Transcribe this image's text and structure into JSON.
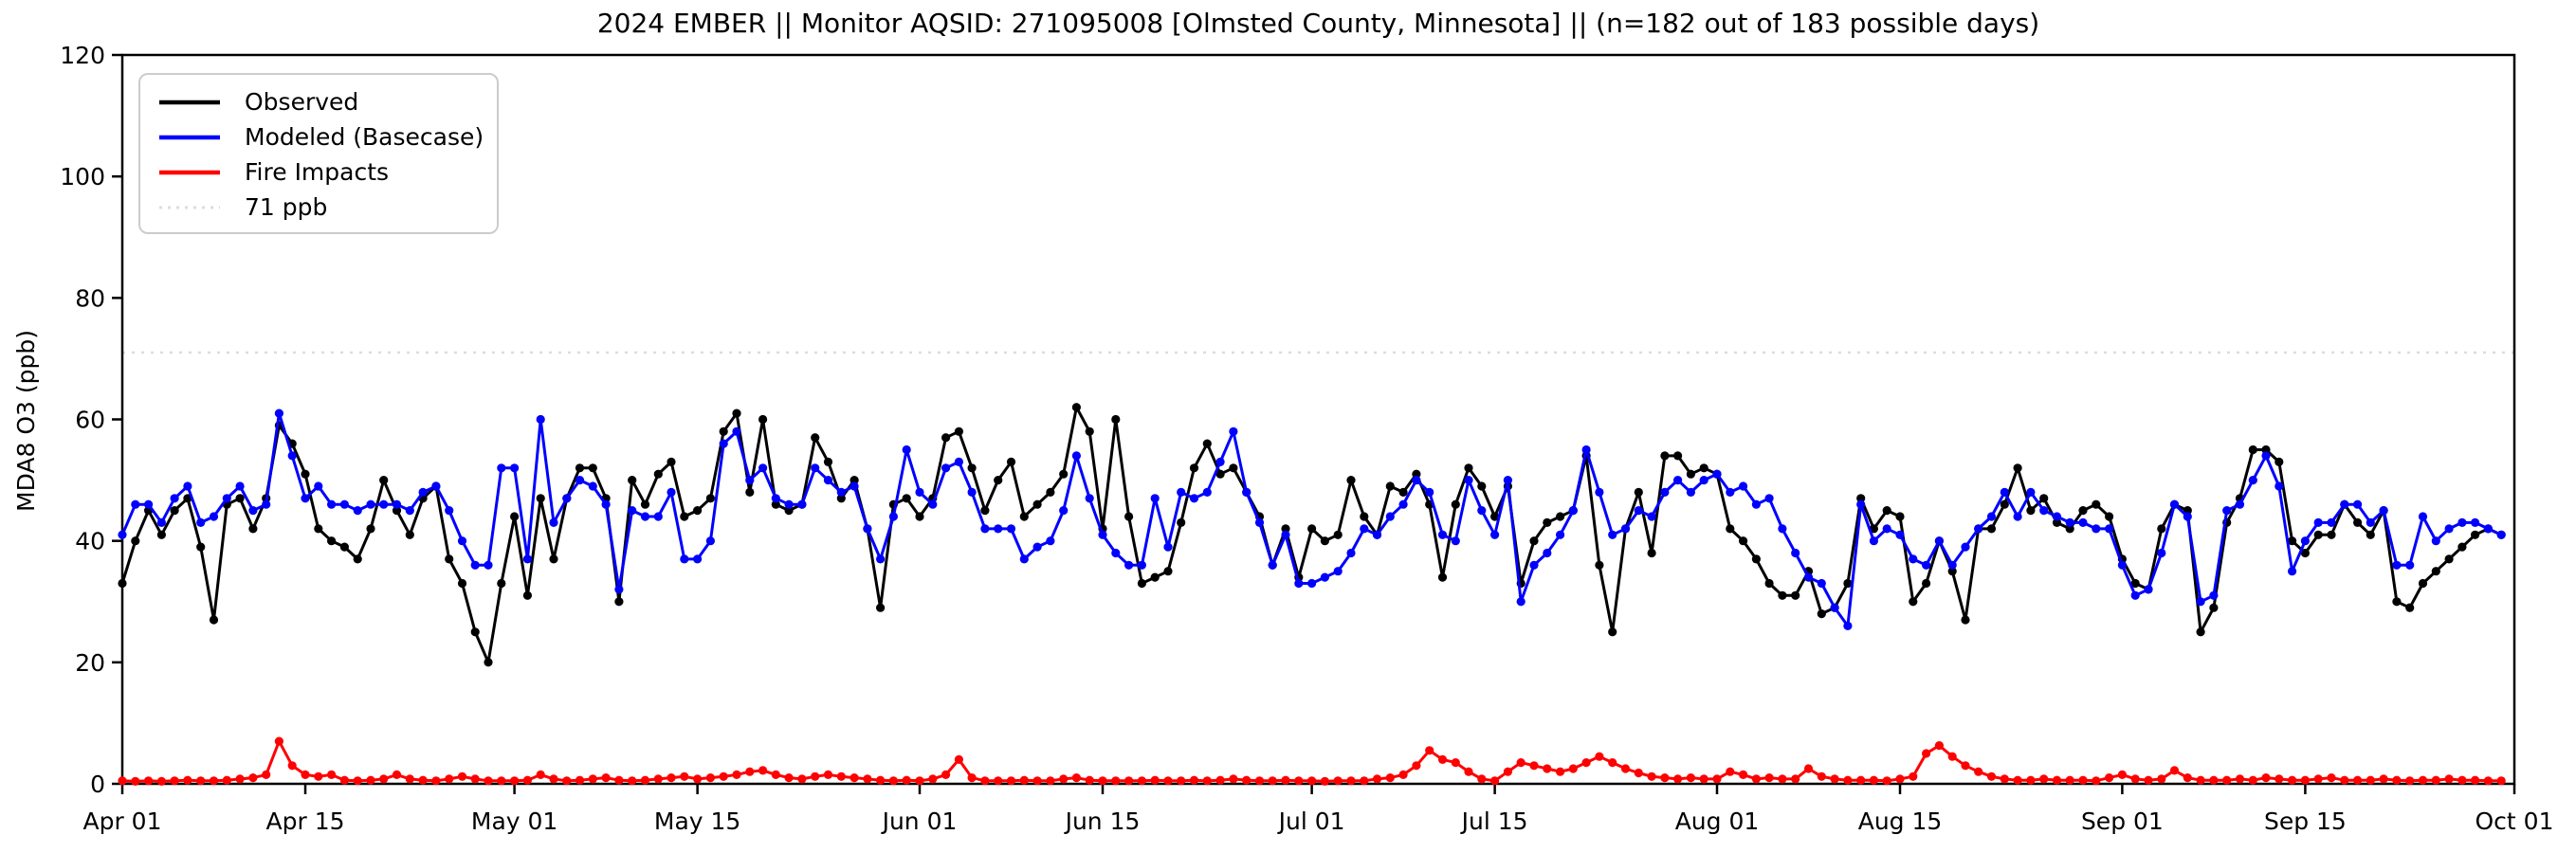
{
  "figure": {
    "title": "2024 EMBER || Monitor AQSID: 271095008 [Olmsted County, Minnesota] || (n=182 out of 183 possible days)",
    "background": "#ffffff"
  },
  "axes": {
    "ylabel": "MDA8 O3 (ppb)",
    "ylim": [
      0,
      120
    ],
    "yticks": [
      0,
      20,
      40,
      60,
      80,
      100,
      120
    ],
    "xlim_days": [
      0,
      183
    ],
    "xticks": [
      {
        "day": 0,
        "label": "Apr 01"
      },
      {
        "day": 14,
        "label": "Apr 15"
      },
      {
        "day": 30,
        "label": "May 01"
      },
      {
        "day": 44,
        "label": "May 15"
      },
      {
        "day": 61,
        "label": "Jun 01"
      },
      {
        "day": 75,
        "label": "Jun 15"
      },
      {
        "day": 91,
        "label": "Jul 01"
      },
      {
        "day": 105,
        "label": "Jul 15"
      },
      {
        "day": 122,
        "label": "Aug 01"
      },
      {
        "day": 136,
        "label": "Aug 15"
      },
      {
        "day": 153,
        "label": "Sep 01"
      },
      {
        "day": 167,
        "label": "Sep 15"
      },
      {
        "day": 183,
        "label": "Oct 01"
      }
    ]
  },
  "legend": {
    "entries": [
      {
        "label": "Observed",
        "color": "#000000",
        "style": "solid"
      },
      {
        "label": "Modeled (Basecase)",
        "color": "#0000ff",
        "style": "solid"
      },
      {
        "label": "Fire Impacts",
        "color": "#ff0000",
        "style": "solid"
      },
      {
        "label": "71 ppb",
        "color": "#dcdcdc",
        "style": "dotted"
      }
    ]
  },
  "chart_data": {
    "type": "line",
    "title": "2024 EMBER || Monitor AQSID: 271095008 [Olmsted County, Minnesota] || (n=182 out of 183 possible days)",
    "xlabel": "",
    "ylabel": "MDA8 O3 (ppb)",
    "ylim": [
      0,
      120
    ],
    "x_unit": "daily, day index 0 = Apr 01 2024, last point = Sep 30 2024",
    "n_days": 183,
    "grid": false,
    "legend_position": "upper-left",
    "threshold": {
      "value": 71,
      "label": "71 ppb",
      "color": "#dcdcdc",
      "style": "dotted"
    },
    "series": [
      {
        "name": "Observed",
        "color": "#000000",
        "marker": "circle",
        "values": [
          33,
          40,
          45,
          41,
          45,
          47,
          39,
          27,
          46,
          47,
          42,
          47,
          59,
          56,
          51,
          42,
          40,
          39,
          37,
          42,
          50,
          45,
          41,
          47,
          49,
          37,
          33,
          25,
          20,
          33,
          44,
          31,
          47,
          37,
          47,
          52,
          52,
          47,
          30,
          50,
          46,
          51,
          53,
          44,
          45,
          47,
          58,
          61,
          48,
          60,
          46,
          45,
          46,
          57,
          53,
          47,
          50,
          42,
          29,
          46,
          47,
          44,
          47,
          57,
          58,
          52,
          45,
          50,
          53,
          44,
          46,
          48,
          51,
          62,
          58,
          42,
          60,
          44,
          33,
          34,
          35,
          43,
          52,
          56,
          51,
          52,
          48,
          44,
          36,
          42,
          34,
          42,
          40,
          41,
          50,
          44,
          41,
          49,
          48,
          51,
          46,
          34,
          46,
          52,
          49,
          44,
          49,
          33,
          40,
          43,
          44,
          45,
          54,
          36,
          25,
          42,
          48,
          38,
          54,
          54,
          51,
          52,
          51,
          42,
          40,
          37,
          33,
          31,
          31,
          35,
          28,
          29,
          33,
          47,
          42,
          45,
          44,
          30,
          33,
          40,
          35,
          27,
          42,
          42,
          46,
          52,
          45,
          47,
          43,
          42,
          45,
          46,
          44,
          37,
          33,
          32,
          42,
          46,
          45,
          25,
          29,
          43,
          47,
          55,
          55,
          53,
          40,
          38,
          41,
          41,
          46,
          43,
          41,
          45,
          30,
          29,
          33,
          35,
          37,
          39,
          41,
          42,
          41
        ]
      },
      {
        "name": "Modeled (Basecase)",
        "color": "#0000ff",
        "marker": "circle",
        "values": [
          41,
          46,
          46,
          43,
          47,
          49,
          43,
          44,
          47,
          49,
          45,
          46,
          61,
          54,
          47,
          49,
          46,
          46,
          45,
          46,
          46,
          46,
          45,
          48,
          49,
          45,
          40,
          36,
          36,
          52,
          52,
          37,
          60,
          43,
          47,
          50,
          49,
          46,
          32,
          45,
          44,
          44,
          48,
          37,
          37,
          40,
          56,
          58,
          50,
          52,
          47,
          46,
          46,
          52,
          50,
          48,
          49,
          42,
          37,
          44,
          55,
          48,
          46,
          52,
          53,
          48,
          42,
          42,
          42,
          37,
          39,
          40,
          45,
          54,
          47,
          41,
          38,
          36,
          36,
          47,
          39,
          48,
          47,
          48,
          53,
          58,
          48,
          43,
          36,
          41,
          33,
          33,
          34,
          35,
          38,
          42,
          41,
          44,
          46,
          50,
          48,
          41,
          40,
          50,
          45,
          41,
          50,
          30,
          36,
          38,
          41,
          45,
          55,
          48,
          41,
          42,
          45,
          44,
          48,
          50,
          48,
          50,
          51,
          48,
          49,
          46,
          47,
          42,
          38,
          34,
          33,
          29,
          26,
          46,
          40,
          42,
          41,
          37,
          36,
          40,
          36,
          39,
          42,
          44,
          48,
          44,
          48,
          45,
          44,
          43,
          43,
          42,
          42,
          36,
          31,
          32,
          38,
          46,
          44,
          30,
          31,
          45,
          46,
          50,
          54,
          49,
          35,
          40,
          43,
          43,
          46,
          46,
          43,
          45,
          36,
          36,
          44,
          40,
          42,
          43,
          43,
          42,
          41
        ]
      },
      {
        "name": "Fire Impacts",
        "color": "#ff0000",
        "marker": "circle",
        "values": [
          0.5,
          0.4,
          0.5,
          0.4,
          0.5,
          0.6,
          0.5,
          0.5,
          0.6,
          0.8,
          1.0,
          1.5,
          7.0,
          3.0,
          1.5,
          1.2,
          1.5,
          0.6,
          0.5,
          0.6,
          0.8,
          1.5,
          0.8,
          0.6,
          0.5,
          0.8,
          1.2,
          0.8,
          0.5,
          0.5,
          0.5,
          0.6,
          1.5,
          0.8,
          0.5,
          0.6,
          0.8,
          1.0,
          0.6,
          0.5,
          0.6,
          0.8,
          1.0,
          1.2,
          0.8,
          1.0,
          1.2,
          1.5,
          2.0,
          2.2,
          1.5,
          1.0,
          0.8,
          1.2,
          1.5,
          1.2,
          1.0,
          0.8,
          0.6,
          0.5,
          0.6,
          0.5,
          0.8,
          1.5,
          4.0,
          1.0,
          0.5,
          0.5,
          0.5,
          0.6,
          0.5,
          0.5,
          0.8,
          1.0,
          0.6,
          0.5,
          0.5,
          0.5,
          0.5,
          0.6,
          0.5,
          0.5,
          0.6,
          0.5,
          0.6,
          0.8,
          0.6,
          0.5,
          0.5,
          0.6,
          0.5,
          0.5,
          0.4,
          0.5,
          0.5,
          0.5,
          0.8,
          1.0,
          1.5,
          3.0,
          5.5,
          4.0,
          3.5,
          2.0,
          0.8,
          0.5,
          2.0,
          3.5,
          3.0,
          2.5,
          2.0,
          2.5,
          3.5,
          4.5,
          3.5,
          2.5,
          1.8,
          1.2,
          1.0,
          0.8,
          1.0,
          0.8,
          0.8,
          2.0,
          1.5,
          0.8,
          1.0,
          0.8,
          0.8,
          2.5,
          1.2,
          0.8,
          0.6,
          0.6,
          0.6,
          0.5,
          0.8,
          1.2,
          5.0,
          6.3,
          4.5,
          3.0,
          2.0,
          1.2,
          0.8,
          0.6,
          0.6,
          0.8,
          0.6,
          0.6,
          0.6,
          0.5,
          1.0,
          1.5,
          0.8,
          0.6,
          0.8,
          2.2,
          1.0,
          0.6,
          0.6,
          0.6,
          0.8,
          0.6,
          1.0,
          0.8,
          0.6,
          0.6,
          0.8,
          1.0,
          0.6,
          0.6,
          0.6,
          0.8,
          0.6,
          0.5,
          0.6,
          0.6,
          0.8,
          0.6,
          0.6,
          0.5,
          0.5
        ]
      }
    ]
  }
}
